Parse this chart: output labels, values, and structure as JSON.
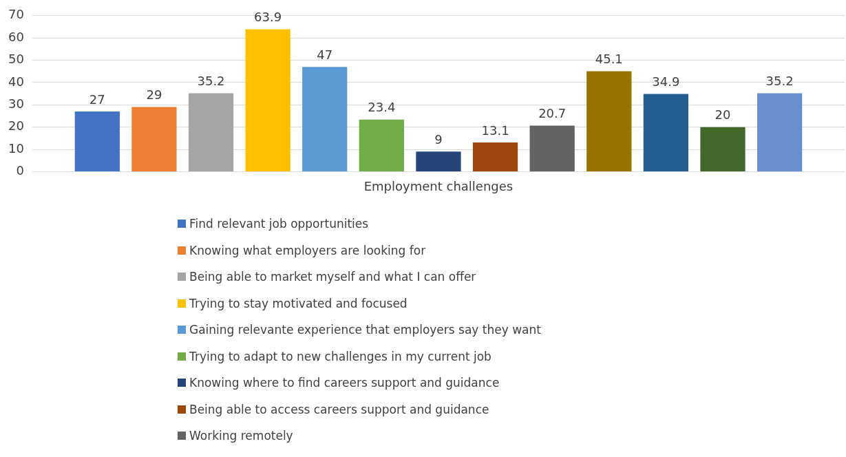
{
  "chart_data": {
    "type": "bar",
    "categories": [
      "Employment challenges"
    ],
    "series": [
      {
        "name": "Find relevant job opportunities",
        "color": "#4472c4",
        "values": [
          27
        ]
      },
      {
        "name": "Knowing what employers are looking for",
        "color": "#ed7d31",
        "values": [
          29
        ]
      },
      {
        "name": "Being able to market myself and what I can offer",
        "color": "#a5a5a5",
        "values": [
          35.2
        ]
      },
      {
        "name": "Trying to stay motivated and focused",
        "color": "#ffc000",
        "values": [
          63.9
        ]
      },
      {
        "name": "Gaining relevante experience that employers say they want",
        "color": "#5b9bd5",
        "values": [
          47
        ]
      },
      {
        "name": "Trying to adapt to new challenges in my current job",
        "color": "#70ad47",
        "values": [
          23.4
        ]
      },
      {
        "name": "Knowing where to find careers support and guidance",
        "color": "#264478",
        "values": [
          9
        ]
      },
      {
        "name": "Being able to access careers support and guidance",
        "color": "#9e480e",
        "values": [
          13.1
        ]
      },
      {
        "name": "Working remotely",
        "color": "#636363",
        "values": [
          20.7
        ]
      },
      {
        "color": "#997300",
        "values": [
          45.1
        ]
      },
      {
        "color": "#255e91",
        "values": [
          34.9
        ]
      },
      {
        "color": "#43682b",
        "values": [
          20
        ]
      },
      {
        "color": "#698ed0",
        "values": [
          35.2
        ]
      }
    ],
    "ylim": [
      0,
      70
    ],
    "yticks": [
      0,
      10,
      20,
      30,
      40,
      50,
      60,
      70
    ],
    "grid": "y",
    "legend": "bottom",
    "data_labels": true
  }
}
